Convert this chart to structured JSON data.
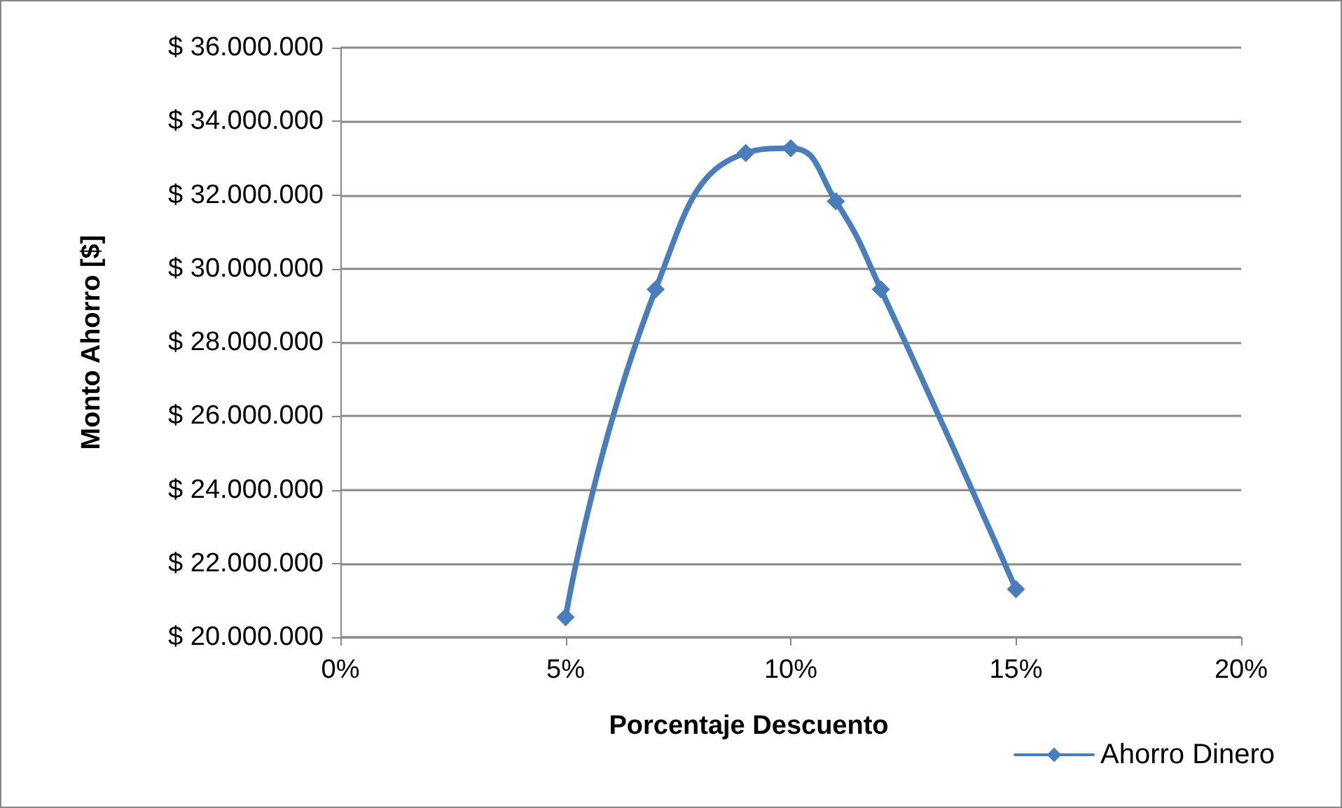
{
  "chart_data": {
    "type": "line",
    "xlabel": "Porcentaje Descuento",
    "ylabel": "Monto Ahorro [$]",
    "x": [
      5,
      7,
      9,
      10,
      11,
      12,
      15
    ],
    "series": [
      {
        "name": "Ahorro Dinero",
        "color": "#4a7ebb",
        "values": [
          20540000,
          29440000,
          33140000,
          33270000,
          31830000,
          29440000,
          21300000
        ]
      }
    ],
    "xlim": [
      0,
      20
    ],
    "xticks": [
      {
        "value": 0,
        "label": "0%"
      },
      {
        "value": 5,
        "label": "5%"
      },
      {
        "value": 10,
        "label": "10%"
      },
      {
        "value": 15,
        "label": "15%"
      },
      {
        "value": 20,
        "label": "20%"
      }
    ],
    "ylim": [
      20000000,
      36000000
    ],
    "yticks": [
      {
        "value": 20000000,
        "label": "$ 20.000.000"
      },
      {
        "value": 22000000,
        "label": "$ 22.000.000"
      },
      {
        "value": 24000000,
        "label": "$ 24.000.000"
      },
      {
        "value": 26000000,
        "label": "$ 26.000.000"
      },
      {
        "value": 28000000,
        "label": "$ 28.000.000"
      },
      {
        "value": 30000000,
        "label": "$ 30.000.000"
      },
      {
        "value": 32000000,
        "label": "$ 32.000.000"
      },
      {
        "value": 34000000,
        "label": "$ 34.000.000"
      },
      {
        "value": 36000000,
        "label": "$ 36.000.000"
      }
    ],
    "grid": "y",
    "legend": "bottom right",
    "marker": "diamond",
    "line_style": "solid"
  }
}
